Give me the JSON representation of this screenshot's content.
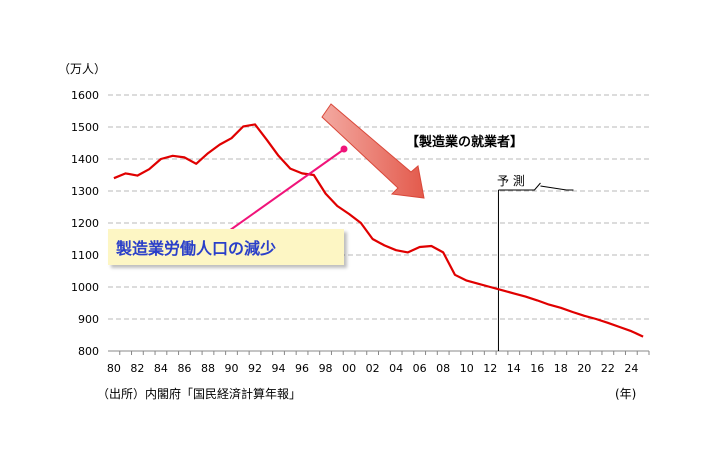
{
  "chart_data": {
    "type": "line",
    "title": "【製造業の就業者】",
    "ylabel": "（万人）",
    "xlabel": "(年)",
    "source": "（出所）内閣府「国民経済計算年報」",
    "ylim": [
      800,
      1600
    ],
    "yticks": [
      800,
      900,
      1000,
      1100,
      1200,
      1300,
      1400,
      1500,
      1600
    ],
    "xticks": [
      "80",
      "82",
      "84",
      "86",
      "88",
      "90",
      "92",
      "94",
      "96",
      "98",
      "00",
      "02",
      "04",
      "06",
      "08",
      "10",
      "12",
      "14",
      "16",
      "18",
      "20",
      "22",
      "24"
    ],
    "grid": true,
    "annotation": "製造業労働人口の減少",
    "forecast_label": "予 測",
    "forecast_start": 2012.7,
    "series": [
      {
        "color": "#e00000",
        "x": [
          1980,
          1981,
          1982,
          1983,
          1984,
          1985,
          1986,
          1987,
          1988,
          1989,
          1990,
          1991,
          1992,
          1993,
          1994,
          1995,
          1996,
          1997,
          1998,
          1999,
          2000,
          2001,
          2002,
          2003,
          2004,
          2005,
          2006,
          2007,
          2008,
          2009,
          2010,
          2011,
          2012,
          2013,
          2014,
          2015,
          2016,
          2017,
          2018,
          2019,
          2020,
          2021,
          2022,
          2023,
          2024,
          2025
        ],
        "y": [
          1340,
          1355,
          1348,
          1368,
          1400,
          1410,
          1405,
          1385,
          1418,
          1445,
          1465,
          1502,
          1508,
          1460,
          1410,
          1370,
          1355,
          1350,
          1292,
          1253,
          1228,
          1200,
          1150,
          1130,
          1115,
          1108,
          1125,
          1128,
          1108,
          1038,
          1020,
          1010,
          1000,
          990,
          980,
          970,
          958,
          945,
          935,
          922,
          910,
          900,
          888,
          875,
          862,
          845
        ]
      }
    ]
  }
}
